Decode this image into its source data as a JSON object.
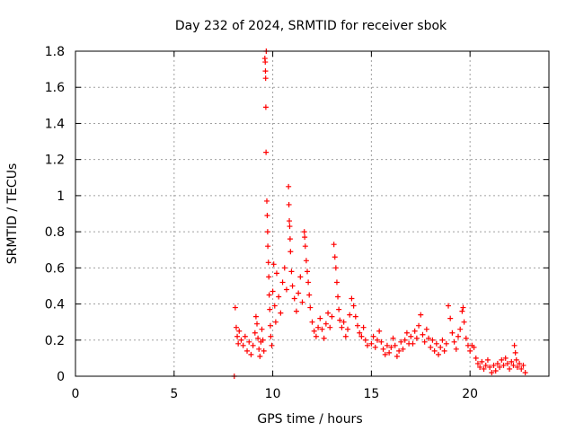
{
  "chart_data": {
    "type": "scatter",
    "title": "Day 232 of 2024, SRMTID for receiver sbok",
    "xlabel": "GPS time / hours",
    "ylabel": "SRMTID / TECUs",
    "xlim": [
      0,
      24
    ],
    "ylim": [
      0,
      1.8
    ],
    "x_ticks": [
      0,
      5,
      10,
      15,
      20
    ],
    "x_tick_labels": [
      "0",
      "5",
      "10",
      "15",
      "20"
    ],
    "y_ticks": [
      0,
      0.2,
      0.4,
      0.6,
      0.8,
      1.0,
      1.2,
      1.4,
      1.6,
      1.8
    ],
    "y_tick_labels": [
      "0",
      "0.2",
      "0.4",
      "0.6",
      "0.8",
      "1",
      "1.2",
      "1.4",
      "1.6",
      "1.8"
    ],
    "grid": true,
    "marker": "+",
    "series_color": "#ff0000",
    "series": [
      {
        "name": "SRMTID",
        "points": [
          [
            8.05,
            0.0
          ],
          [
            8.1,
            0.38
          ],
          [
            8.15,
            0.27
          ],
          [
            8.2,
            0.22
          ],
          [
            8.25,
            0.18
          ],
          [
            8.3,
            0.25
          ],
          [
            8.4,
            0.2
          ],
          [
            8.5,
            0.17
          ],
          [
            8.6,
            0.22
          ],
          [
            8.7,
            0.14
          ],
          [
            8.8,
            0.19
          ],
          [
            8.9,
            0.12
          ],
          [
            9.0,
            0.17
          ],
          [
            9.1,
            0.24
          ],
          [
            9.15,
            0.33
          ],
          [
            9.2,
            0.29
          ],
          [
            9.25,
            0.21
          ],
          [
            9.3,
            0.15
          ],
          [
            9.35,
            0.11
          ],
          [
            9.4,
            0.19
          ],
          [
            9.45,
            0.26
          ],
          [
            9.5,
            0.2
          ],
          [
            9.55,
            0.14
          ],
          [
            9.6,
            1.76
          ],
          [
            9.62,
            1.74
          ],
          [
            9.63,
            1.69
          ],
          [
            9.64,
            1.65
          ],
          [
            9.65,
            1.49
          ],
          [
            9.66,
            1.24
          ],
          [
            9.67,
            1.8
          ],
          [
            9.7,
            0.97
          ],
          [
            9.72,
            0.89
          ],
          [
            9.74,
            0.8
          ],
          [
            9.75,
            0.72
          ],
          [
            9.78,
            0.63
          ],
          [
            9.8,
            0.55
          ],
          [
            9.82,
            0.45
          ],
          [
            9.85,
            0.37
          ],
          [
            9.88,
            0.28
          ],
          [
            9.9,
            0.22
          ],
          [
            9.95,
            0.17
          ],
          [
            10.0,
            0.47
          ],
          [
            10.05,
            0.62
          ],
          [
            10.1,
            0.39
          ],
          [
            10.15,
            0.3
          ],
          [
            10.2,
            0.57
          ],
          [
            10.3,
            0.44
          ],
          [
            10.4,
            0.35
          ],
          [
            10.5,
            0.52
          ],
          [
            10.6,
            0.6
          ],
          [
            10.7,
            0.48
          ],
          [
            10.8,
            1.05
          ],
          [
            10.82,
            0.95
          ],
          [
            10.84,
            0.86
          ],
          [
            10.86,
            0.83
          ],
          [
            10.88,
            0.76
          ],
          [
            10.9,
            0.69
          ],
          [
            10.95,
            0.58
          ],
          [
            11.0,
            0.5
          ],
          [
            11.1,
            0.43
          ],
          [
            11.2,
            0.36
          ],
          [
            11.3,
            0.46
          ],
          [
            11.4,
            0.55
          ],
          [
            11.5,
            0.41
          ],
          [
            11.6,
            0.8
          ],
          [
            11.62,
            0.77
          ],
          [
            11.65,
            0.72
          ],
          [
            11.7,
            0.64
          ],
          [
            11.75,
            0.58
          ],
          [
            11.8,
            0.52
          ],
          [
            11.85,
            0.45
          ],
          [
            11.9,
            0.38
          ],
          [
            12.0,
            0.3
          ],
          [
            12.1,
            0.25
          ],
          [
            12.2,
            0.22
          ],
          [
            12.3,
            0.27
          ],
          [
            12.4,
            0.32
          ],
          [
            12.5,
            0.26
          ],
          [
            12.6,
            0.21
          ],
          [
            12.7,
            0.29
          ],
          [
            12.8,
            0.35
          ],
          [
            12.9,
            0.27
          ],
          [
            13.0,
            0.33
          ],
          [
            13.1,
            0.73
          ],
          [
            13.15,
            0.66
          ],
          [
            13.2,
            0.6
          ],
          [
            13.25,
            0.52
          ],
          [
            13.3,
            0.44
          ],
          [
            13.35,
            0.37
          ],
          [
            13.4,
            0.31
          ],
          [
            13.5,
            0.27
          ],
          [
            13.6,
            0.3
          ],
          [
            13.7,
            0.22
          ],
          [
            13.8,
            0.26
          ],
          [
            13.9,
            0.34
          ],
          [
            14.0,
            0.43
          ],
          [
            14.1,
            0.39
          ],
          [
            14.2,
            0.33
          ],
          [
            14.3,
            0.28
          ],
          [
            14.4,
            0.24
          ],
          [
            14.5,
            0.22
          ],
          [
            14.6,
            0.27
          ],
          [
            14.7,
            0.2
          ],
          [
            14.8,
            0.17
          ],
          [
            15.0,
            0.18
          ],
          [
            15.1,
            0.22
          ],
          [
            15.2,
            0.16
          ],
          [
            15.3,
            0.2
          ],
          [
            15.4,
            0.25
          ],
          [
            15.5,
            0.19
          ],
          [
            15.6,
            0.15
          ],
          [
            15.7,
            0.12
          ],
          [
            15.8,
            0.17
          ],
          [
            15.9,
            0.13
          ],
          [
            16.0,
            0.16
          ],
          [
            16.1,
            0.21
          ],
          [
            16.2,
            0.17
          ],
          [
            16.3,
            0.11
          ],
          [
            16.4,
            0.14
          ],
          [
            16.5,
            0.19
          ],
          [
            16.6,
            0.15
          ],
          [
            16.7,
            0.2
          ],
          [
            16.8,
            0.24
          ],
          [
            16.9,
            0.18
          ],
          [
            17.0,
            0.22
          ],
          [
            17.1,
            0.18
          ],
          [
            17.2,
            0.25
          ],
          [
            17.3,
            0.21
          ],
          [
            17.4,
            0.28
          ],
          [
            17.5,
            0.34
          ],
          [
            17.6,
            0.23
          ],
          [
            17.7,
            0.19
          ],
          [
            17.8,
            0.26
          ],
          [
            17.9,
            0.21
          ],
          [
            18.0,
            0.16
          ],
          [
            18.1,
            0.2
          ],
          [
            18.2,
            0.14
          ],
          [
            18.3,
            0.18
          ],
          [
            18.4,
            0.12
          ],
          [
            18.5,
            0.16
          ],
          [
            18.6,
            0.2
          ],
          [
            18.7,
            0.14
          ],
          [
            18.8,
            0.18
          ],
          [
            18.9,
            0.39
          ],
          [
            19.0,
            0.32
          ],
          [
            19.1,
            0.24
          ],
          [
            19.2,
            0.19
          ],
          [
            19.3,
            0.15
          ],
          [
            19.4,
            0.22
          ],
          [
            19.5,
            0.26
          ],
          [
            19.6,
            0.36
          ],
          [
            19.65,
            0.38
          ],
          [
            19.7,
            0.3
          ],
          [
            19.8,
            0.21
          ],
          [
            19.9,
            0.17
          ],
          [
            20.0,
            0.14
          ],
          [
            20.1,
            0.17
          ],
          [
            20.2,
            0.16
          ],
          [
            20.3,
            0.1
          ],
          [
            20.4,
            0.07
          ],
          [
            20.5,
            0.05
          ],
          [
            20.6,
            0.08
          ],
          [
            20.7,
            0.04
          ],
          [
            20.8,
            0.06
          ],
          [
            20.9,
            0.09
          ],
          [
            21.0,
            0.05
          ],
          [
            21.1,
            0.02
          ],
          [
            21.2,
            0.06
          ],
          [
            21.3,
            0.03
          ],
          [
            21.4,
            0.07
          ],
          [
            21.5,
            0.05
          ],
          [
            21.6,
            0.09
          ],
          [
            21.7,
            0.06
          ],
          [
            21.8,
            0.1
          ],
          [
            21.9,
            0.07
          ],
          [
            22.0,
            0.04
          ],
          [
            22.1,
            0.08
          ],
          [
            22.2,
            0.06
          ],
          [
            22.25,
            0.17
          ],
          [
            22.3,
            0.13
          ],
          [
            22.35,
            0.09
          ],
          [
            22.4,
            0.05
          ],
          [
            22.5,
            0.07
          ],
          [
            22.6,
            0.04
          ],
          [
            22.7,
            0.06
          ],
          [
            22.8,
            0.02
          ]
        ]
      }
    ]
  }
}
